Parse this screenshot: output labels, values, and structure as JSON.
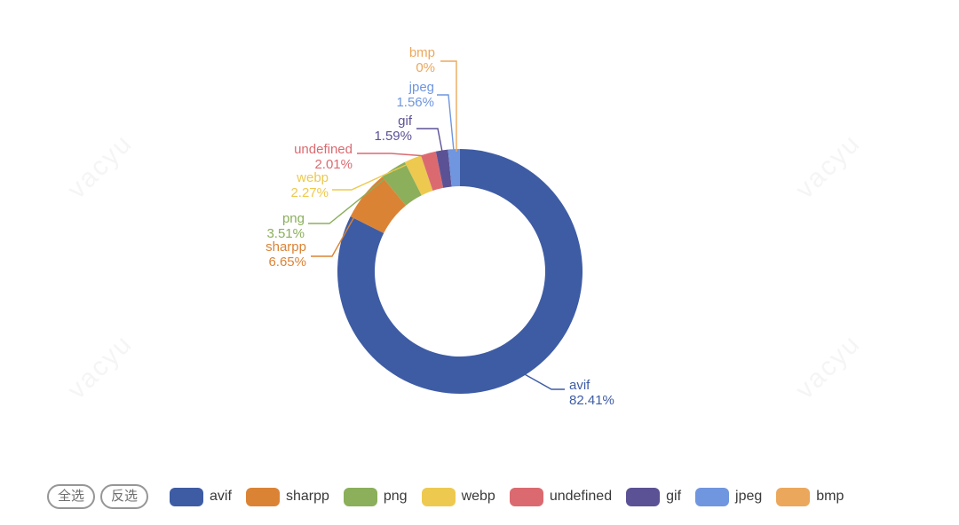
{
  "watermark": {
    "text": "vacyu"
  },
  "buttons": {
    "select_all": "全选",
    "invert_select": "反选"
  },
  "chart_data": {
    "type": "pie",
    "donut": true,
    "title": "",
    "legend_position": "bottom",
    "start_angle_deg_from_top": 0,
    "direction": "clockwise",
    "slices": [
      {
        "name": "avif",
        "value": 82.41,
        "pct_label": "82.41%",
        "color": "#3E5CA4"
      },
      {
        "name": "sharpp",
        "value": 6.65,
        "pct_label": "6.65%",
        "color": "#DB8335"
      },
      {
        "name": "png",
        "value": 3.51,
        "pct_label": "3.51%",
        "color": "#8BAF5A"
      },
      {
        "name": "webp",
        "value": 2.27,
        "pct_label": "2.27%",
        "color": "#EDC94F"
      },
      {
        "name": "undefined",
        "value": 2.01,
        "pct_label": "2.01%",
        "color": "#DB6A70"
      },
      {
        "name": "gif",
        "value": 1.59,
        "pct_label": "1.59%",
        "color": "#5B5295"
      },
      {
        "name": "jpeg",
        "value": 1.56,
        "pct_label": "1.56%",
        "color": "#6F96DE"
      },
      {
        "name": "bmp",
        "value": 0,
        "pct_label": "0%",
        "color": "#EBA85C"
      }
    ]
  }
}
